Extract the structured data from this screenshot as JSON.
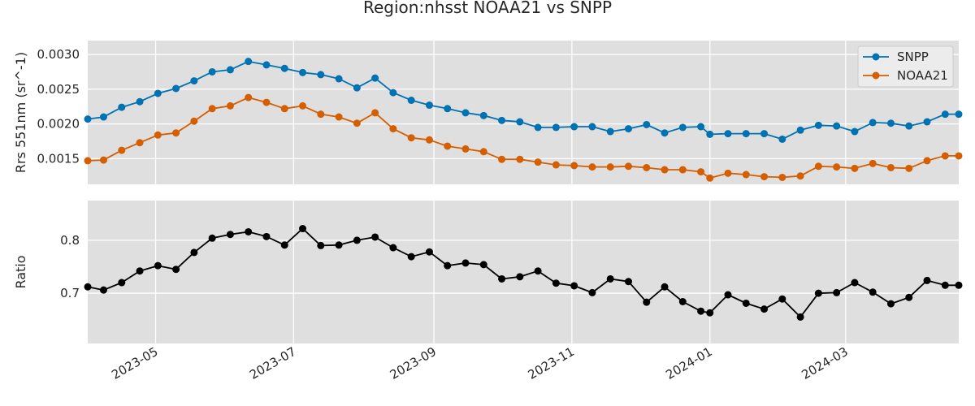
{
  "figure": {
    "title": "Region:nhsst NOAA21 vs SNPP"
  },
  "chart_data": [
    {
      "type": "line",
      "ylabel": "Rrs 551nm (sr^-1)",
      "xlim": [
        "2023-04-01",
        "2024-04-20"
      ],
      "ylim": [
        0.00113,
        0.0032
      ],
      "yticks": [
        0.0015,
        0.002,
        0.0025,
        0.003
      ],
      "ytick_labels": [
        "0.0015",
        "0.0020",
        "0.0025",
        "0.0030"
      ],
      "grid": true,
      "legend_position": "top-right",
      "x": [
        "2023-04-01",
        "2023-04-08",
        "2023-04-16",
        "2023-04-24",
        "2023-05-02",
        "2023-05-10",
        "2023-05-18",
        "2023-05-26",
        "2023-06-03",
        "2023-06-11",
        "2023-06-19",
        "2023-06-27",
        "2023-07-05",
        "2023-07-13",
        "2023-07-21",
        "2023-07-29",
        "2023-08-06",
        "2023-08-14",
        "2023-08-22",
        "2023-08-30",
        "2023-09-07",
        "2023-09-15",
        "2023-09-23",
        "2023-10-01",
        "2023-10-09",
        "2023-10-17",
        "2023-10-25",
        "2023-11-02",
        "2023-11-10",
        "2023-11-18",
        "2023-11-26",
        "2023-12-04",
        "2023-12-12",
        "2023-12-20",
        "2023-12-28",
        "2024-01-01",
        "2024-01-09",
        "2024-01-17",
        "2024-01-25",
        "2024-02-02",
        "2024-02-10",
        "2024-02-18",
        "2024-02-26",
        "2024-03-05",
        "2024-03-13",
        "2024-03-21",
        "2024-03-29",
        "2024-04-06",
        "2024-04-14",
        "2024-04-20"
      ],
      "series": [
        {
          "name": "SNPP",
          "color": "#0072b2",
          "values": [
            0.00207,
            0.0021,
            0.00224,
            0.00232,
            0.00244,
            0.00251,
            0.00262,
            0.00275,
            0.00278,
            0.0029,
            0.00285,
            0.0028,
            0.00274,
            0.00271,
            0.00265,
            0.00252,
            0.00266,
            0.00245,
            0.00234,
            0.00227,
            0.00222,
            0.00216,
            0.00212,
            0.00205,
            0.00203,
            0.00195,
            0.00195,
            0.00196,
            0.00196,
            0.00189,
            0.00193,
            0.00199,
            0.00187,
            0.00195,
            0.00196,
            0.00185,
            0.00186,
            0.00186,
            0.00186,
            0.00178,
            0.00191,
            0.00198,
            0.00197,
            0.00189,
            0.00202,
            0.00201,
            0.00197,
            0.00203,
            0.00214,
            0.00214
          ]
        },
        {
          "name": "NOAA21",
          "color": "#d55e00",
          "values": [
            0.00147,
            0.00148,
            0.00162,
            0.00173,
            0.00184,
            0.00187,
            0.00204,
            0.00222,
            0.00226,
            0.00238,
            0.00231,
            0.00222,
            0.00226,
            0.00214,
            0.0021,
            0.00201,
            0.00216,
            0.00193,
            0.0018,
            0.00177,
            0.00168,
            0.00164,
            0.0016,
            0.00149,
            0.00149,
            0.00145,
            0.00141,
            0.0014,
            0.00138,
            0.00138,
            0.00139,
            0.00137,
            0.00134,
            0.00134,
            0.00131,
            0.00122,
            0.00129,
            0.00127,
            0.00124,
            0.00123,
            0.00125,
            0.00139,
            0.00138,
            0.00136,
            0.00143,
            0.00137,
            0.00136,
            0.00147,
            0.00154,
            0.00154
          ]
        }
      ]
    },
    {
      "type": "line",
      "ylabel": "Ratio",
      "xlim": [
        "2023-04-01",
        "2024-04-20"
      ],
      "ylim": [
        0.605,
        0.875
      ],
      "yticks": [
        0.7,
        0.8
      ],
      "ytick_labels": [
        "0.7",
        "0.8"
      ],
      "xticks": [
        "2023-05-01",
        "2023-07-01",
        "2023-09-01",
        "2023-11-01",
        "2024-01-01",
        "2024-03-01"
      ],
      "xtick_labels": [
        "2023-05",
        "2023-07",
        "2023-09",
        "2023-11",
        "2024-01",
        "2024-03"
      ],
      "grid": true,
      "x": [
        "2023-04-01",
        "2023-04-08",
        "2023-04-16",
        "2023-04-24",
        "2023-05-02",
        "2023-05-10",
        "2023-05-18",
        "2023-05-26",
        "2023-06-03",
        "2023-06-11",
        "2023-06-19",
        "2023-06-27",
        "2023-07-05",
        "2023-07-13",
        "2023-07-21",
        "2023-07-29",
        "2023-08-06",
        "2023-08-14",
        "2023-08-22",
        "2023-08-30",
        "2023-09-07",
        "2023-09-15",
        "2023-09-23",
        "2023-10-01",
        "2023-10-09",
        "2023-10-17",
        "2023-10-25",
        "2023-11-02",
        "2023-11-10",
        "2023-11-18",
        "2023-11-26",
        "2023-12-04",
        "2023-12-12",
        "2023-12-20",
        "2023-12-28",
        "2024-01-01",
        "2024-01-09",
        "2024-01-17",
        "2024-01-25",
        "2024-02-02",
        "2024-02-10",
        "2024-02-18",
        "2024-02-26",
        "2024-03-05",
        "2024-03-13",
        "2024-03-21",
        "2024-03-29",
        "2024-04-06",
        "2024-04-14",
        "2024-04-20"
      ],
      "series": [
        {
          "color": "#000000",
          "values": [
            0.712,
            0.706,
            0.72,
            0.742,
            0.752,
            0.745,
            0.777,
            0.804,
            0.811,
            0.816,
            0.807,
            0.791,
            0.822,
            0.79,
            0.791,
            0.8,
            0.806,
            0.786,
            0.769,
            0.778,
            0.752,
            0.757,
            0.754,
            0.727,
            0.731,
            0.742,
            0.719,
            0.714,
            0.701,
            0.727,
            0.722,
            0.683,
            0.712,
            0.684,
            0.666,
            0.663,
            0.697,
            0.681,
            0.67,
            0.689,
            0.655,
            0.7,
            0.701,
            0.72,
            0.702,
            0.68,
            0.692,
            0.724,
            0.715,
            0.715
          ]
        }
      ]
    }
  ]
}
